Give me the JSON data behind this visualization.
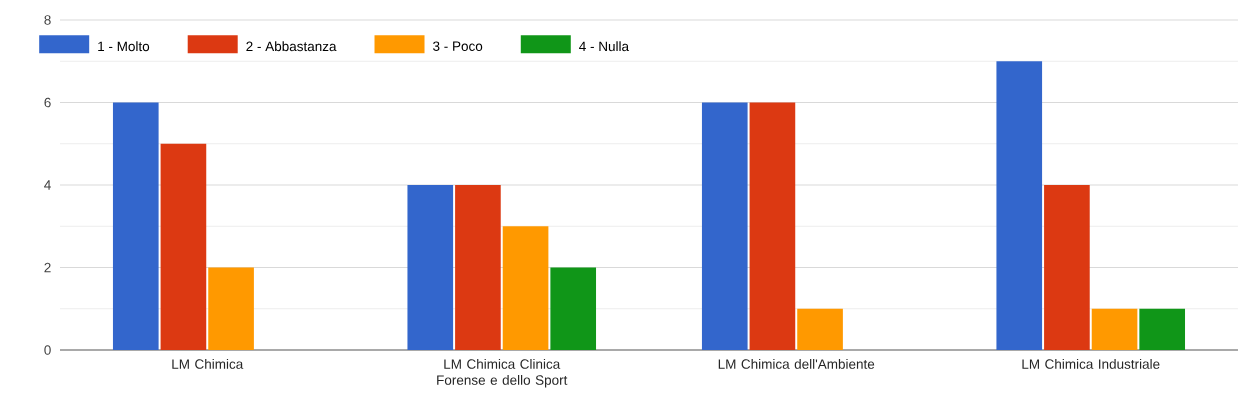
{
  "chart_data": {
    "type": "bar",
    "categories": [
      "LM Chimica",
      "LM Chimica Clinica Forense e dello Sport",
      "LM Chimica dell'Ambiente",
      "LM Chimica Industriale"
    ],
    "series": [
      {
        "name": "1 - Molto",
        "color": "#3366cc",
        "values": [
          6,
          4,
          6,
          7
        ]
      },
      {
        "name": "2 - Abbastanza",
        "color": "#dc3912",
        "values": [
          5,
          4,
          6,
          4
        ]
      },
      {
        "name": "3 - Poco",
        "color": "#ff9900",
        "values": [
          2,
          3,
          1,
          1
        ]
      },
      {
        "name": "4 - Nulla",
        "color": "#109618",
        "values": [
          0,
          2,
          0,
          1
        ]
      }
    ],
    "ylim": [
      0,
      8
    ],
    "yticks": [
      0,
      2,
      4,
      6,
      8
    ],
    "grid": "y",
    "legend": "top left"
  }
}
